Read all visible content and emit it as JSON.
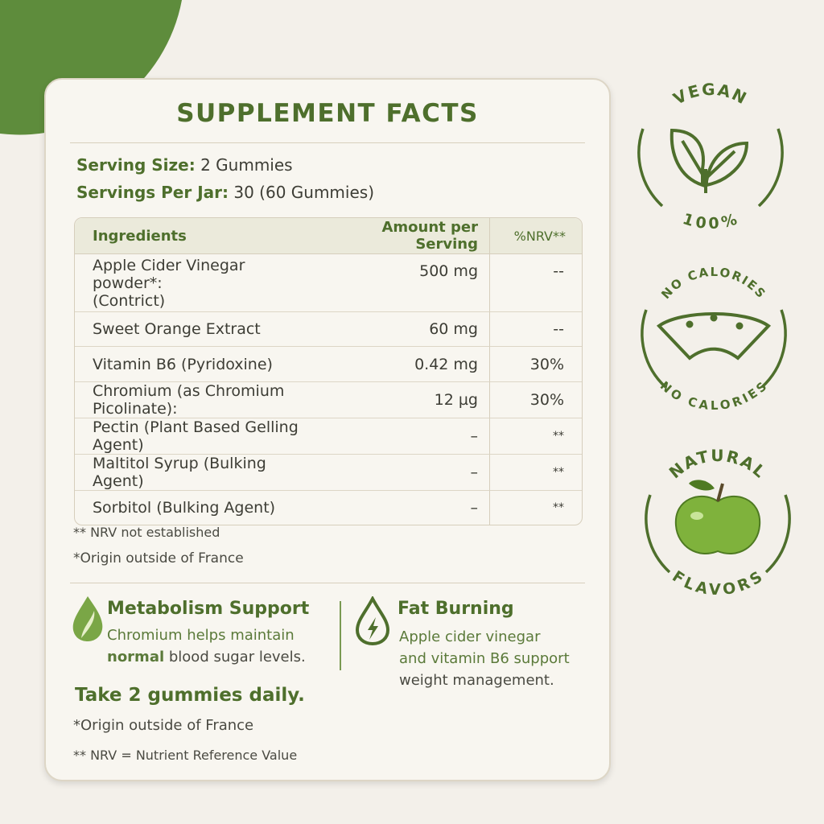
{
  "title": "SUPPLEMENT FACTS",
  "serving_size": {
    "label": "Serving Size:",
    "value": "2 Gummies"
  },
  "servings_per_jar": {
    "label": "Servings Per Jar:",
    "value": "30 (60 Gummies)"
  },
  "table": {
    "headers": [
      "Ingredients",
      "Amount per Serving",
      "%NRV**"
    ],
    "rows": [
      {
        "name": "Apple Cider Vinegar powder*:",
        "sub": "(Contrict)",
        "amount": "500 mg",
        "nrv": "--"
      },
      {
        "name": "Sweet Orange Extract",
        "amount": "60 mg",
        "nrv": "--"
      },
      {
        "name": "Vitamin B6 (Pyridoxine)",
        "amount": "0.42 mg",
        "nrv": "30%"
      },
      {
        "name": "Chromium (as Chromium Picolinate):",
        "amount": "12 µg",
        "nrv": "30%"
      },
      {
        "name": "Pectin (Plant Based Gelling Agent)",
        "amount": "–",
        "nrv": "**"
      },
      {
        "name": "Maltitol Syrup (Bulking Agent)",
        "amount": "–",
        "nrv": "**"
      },
      {
        "name": "Sorbitol (Bulking Agent)",
        "amount": "–",
        "nrv": "**"
      }
    ]
  },
  "notes": [
    "** NRV not established",
    "*Origin outside of France"
  ],
  "features": [
    {
      "title": "Metabolism Support",
      "text1": "Chromium helps maintain",
      "bold": "normal",
      "text2": " blood sugar levels.",
      "icon": "leaf-drop-icon"
    },
    {
      "title": "Fat Burning",
      "lines": [
        "Apple cider vinegar",
        "and vitamin B6 support",
        "weight management."
      ],
      "icon": "lightning-drop-icon"
    }
  ],
  "directions": "Take 2 gummies daily.",
  "footer": [
    "*Origin outside of France",
    "** NRV = Nutrient Reference Value"
  ],
  "badges": [
    {
      "top": "VEGAN",
      "bottom": "100%",
      "icon": "leaf-icon"
    },
    {
      "top": "NO CALORIES",
      "bottom": "NO CALORIES",
      "icon": "gummy-icon"
    },
    {
      "top": "NATURAL",
      "bottom": "FLAVORS",
      "icon": "apple-icon"
    }
  ],
  "colors": {
    "accent": "#4e6f2c",
    "blob": "#5e8c3c",
    "background": "#f3f0ea"
  }
}
